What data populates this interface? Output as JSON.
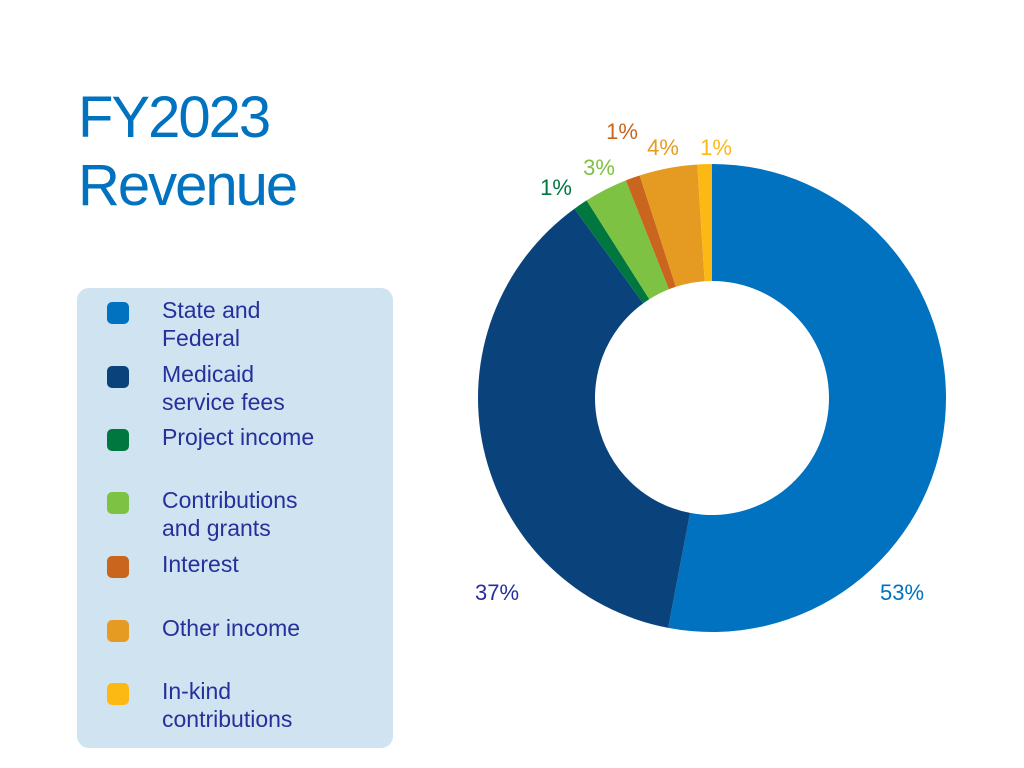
{
  "chart_data": {
    "type": "pie",
    "subtype": "donut",
    "title_lines": [
      "FY2023",
      "Revenue"
    ],
    "legend_placement": "left",
    "series": [
      {
        "name": "State and Federal",
        "legend_lines": [
          "State and",
          "Federal"
        ],
        "value": 53,
        "label": "53%",
        "color": "#0072bf"
      },
      {
        "name": "Medicaid service fees",
        "legend_lines": [
          "Medicaid",
          "service fees"
        ],
        "value": 37,
        "label": "37%",
        "color": "#0a437c"
      },
      {
        "name": "Project income",
        "legend_lines": [
          "Project income"
        ],
        "value": 1,
        "label": "1%",
        "color": "#00773f"
      },
      {
        "name": "Contributions and grants",
        "legend_lines": [
          "Contributions",
          "and grants"
        ],
        "value": 3,
        "label": "3%",
        "color": "#7dc242"
      },
      {
        "name": "Interest",
        "legend_lines": [
          "Interest"
        ],
        "value": 1,
        "label": "1%",
        "color": "#c9651c"
      },
      {
        "name": "Other income",
        "legend_lines": [
          "Other income"
        ],
        "value": 4,
        "label": "4%",
        "color": "#e59b22"
      },
      {
        "name": "In-kind contributions",
        "legend_lines": [
          "In-kind",
          "contributions"
        ],
        "value": 1,
        "label": "1%",
        "color": "#fdb913"
      }
    ],
    "label_color_navy": "#27309a"
  }
}
